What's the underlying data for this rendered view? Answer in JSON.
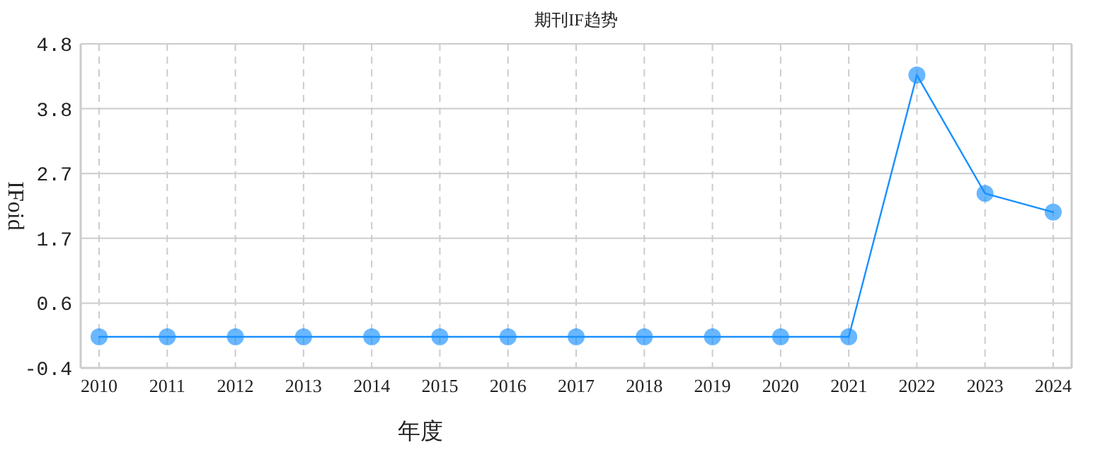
{
  "chart_data": {
    "type": "line",
    "title": "期刊IF趋势",
    "xlabel": "年度",
    "ylabel": "IFoid",
    "categories": [
      "2010",
      "2011",
      "2012",
      "2013",
      "2014",
      "2015",
      "2016",
      "2017",
      "2018",
      "2019",
      "2020",
      "2021",
      "2022",
      "2023",
      "2024"
    ],
    "series": [
      {
        "color": "#1890ff",
        "values": [
          0.1,
          0.1,
          0.1,
          0.1,
          0.1,
          0.1,
          0.1,
          0.1,
          0.1,
          0.1,
          0.1,
          0.1,
          4.3,
          2.4,
          2.1
        ]
      }
    ],
    "ylim": [
      -0.4,
      4.8
    ],
    "yticks": [
      -0.4,
      {
        "value": 0.64,
        "label": "0.6"
      },
      {
        "value": 1.68,
        "label": "1.7"
      },
      {
        "value": 2.72,
        "label": "2.7"
      },
      {
        "value": 3.76,
        "label": "3.8"
      },
      4.8
    ],
    "grid": true,
    "marker": "circle",
    "line_style": "solid"
  }
}
